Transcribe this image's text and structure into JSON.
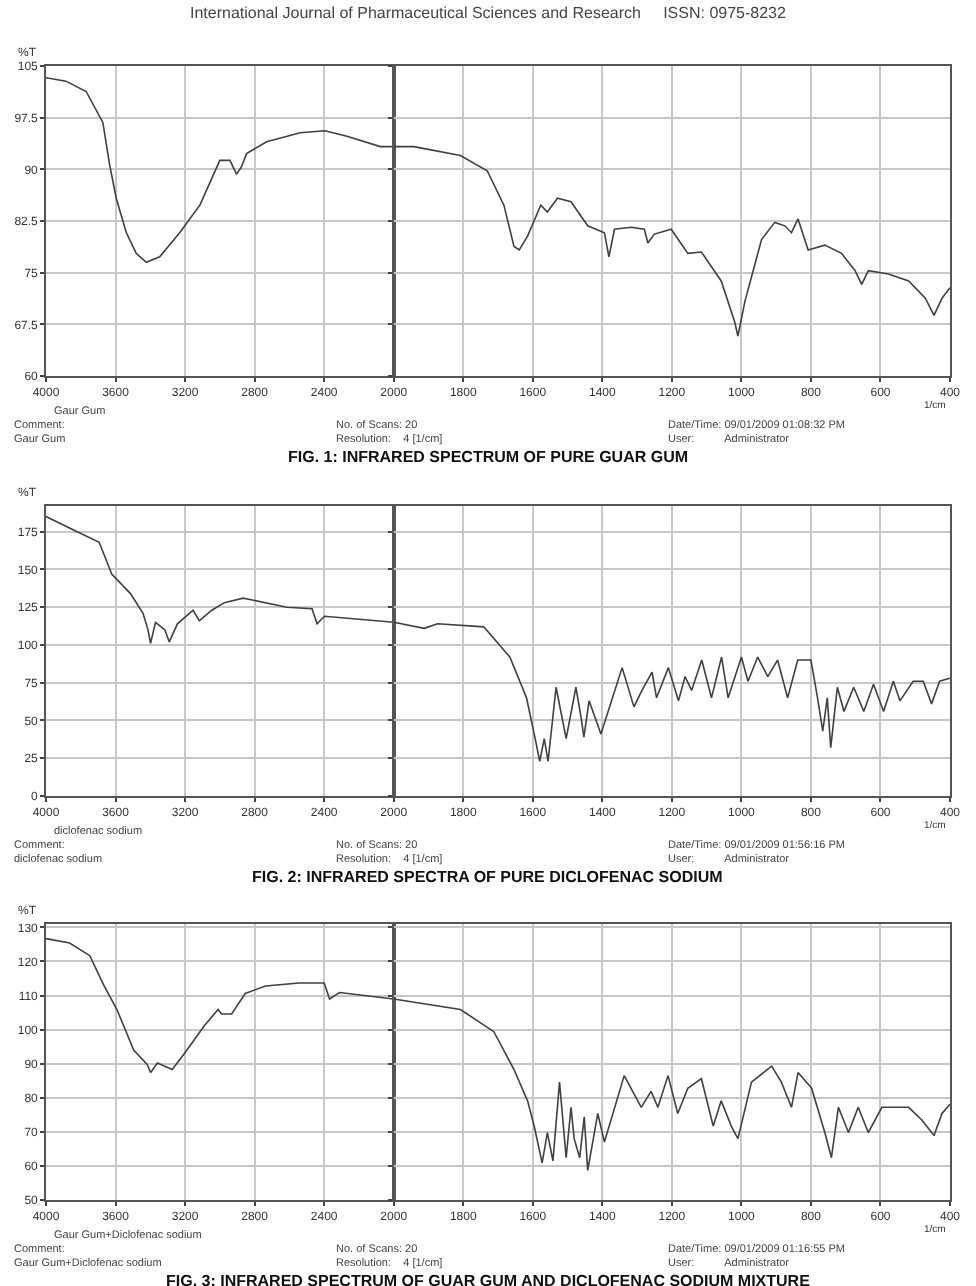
{
  "chart_data": [
    {
      "type": "line",
      "title": "FIG. 1: INFRARED SPECTRUM OF PURE GUAR GUM",
      "subtitle": "International Journal of Pharmaceutical Sciences and Research     ISSN: 0975-8232",
      "ylabel": "%T",
      "annotations": [
        "Gaur Gum",
        "Comment:",
        "Gaur Gum",
        "No. of Scans: 20",
        "Resolution:    4 [1/cm]",
        "Date/Time: 09/01/2009 01:08:32 PM",
        "User:          Administrator"
      ],
      "xlim": [
        4000,
        2000
      ],
      "xticks": [
        4000,
        3600,
        3200,
        2800,
        2400,
        2000
      ],
      "ylim": [
        60,
        105
      ],
      "yticks": [
        60,
        67.5,
        75,
        82.5,
        90,
        97.5,
        105
      ],
      "grid": true,
      "series": [
        {
          "color": "#404040",
          "x": [
            4000,
            3885,
            3769,
            3673,
            3635,
            3596,
            3538,
            3481,
            3423,
            3346,
            3231,
            3115,
            3000,
            2942,
            2904,
            2877,
            2846,
            2731,
            2538,
            2396,
            2269,
            2077,
            2000
          ],
          "values": [
            103.3,
            102.8,
            101.3,
            96.8,
            90.8,
            85.8,
            80.8,
            77.8,
            76.5,
            77.3,
            80.8,
            84.8,
            91.3,
            91.3,
            89.3,
            90.3,
            92.3,
            94,
            95.3,
            95.6,
            94.8,
            93.3,
            93.3
          ]
        }
      ]
    },
    {
      "type": "line",
      "xlabel": "1/cm",
      "tick_labels": "x",
      "xlim": [
        2000,
        400
      ],
      "xticks": [
        1800,
        1600,
        1400,
        1200,
        1000,
        800,
        600,
        400
      ],
      "ylim": [
        60,
        105
      ],
      "yticks": [
        60,
        67.5,
        75,
        82.5,
        90,
        97.5,
        105
      ],
      "grid": true,
      "series": [
        {
          "color": "#404040",
          "x": [
            2000,
            1942,
            1808,
            1731,
            1683,
            1654,
            1639,
            1615,
            1577,
            1558,
            1529,
            1490,
            1442,
            1394,
            1381,
            1365,
            1317,
            1279,
            1269,
            1250,
            1202,
            1154,
            1115,
            1058,
            1019,
            1010,
            990,
            942,
            904,
            875,
            856,
            837,
            808,
            760,
            712,
            673,
            654,
            635,
            577,
            519,
            471,
            446,
            423,
            400
          ],
          "values": [
            93.3,
            93.3,
            92,
            89.8,
            84.8,
            78.8,
            78.3,
            80.3,
            84.8,
            83.8,
            85.8,
            85.3,
            81.8,
            80.8,
            77.3,
            81.3,
            81.6,
            81.3,
            79.3,
            80.6,
            81.3,
            77.8,
            78,
            73.8,
            67.8,
            65.8,
            70.8,
            79.8,
            82.3,
            81.8,
            80.8,
            82.8,
            78.3,
            79,
            77.8,
            75.3,
            73.3,
            75.3,
            74.8,
            73.8,
            71.3,
            68.8,
            71.3,
            72.8
          ]
        }
      ]
    },
    {
      "type": "line",
      "title": "FIG. 2: INFRARED SPECTRA OF PURE DICLOFENAC SODIUM",
      "ylabel": "%T",
      "annotations": [
        "diclofenac sodium",
        "Comment:",
        "diclofenac sodium",
        "No. of Scans: 20",
        "Resolution:    4 [1/cm]",
        "Date/Time: 09/01/2009 01:56:16 PM",
        "User:          Administrator"
      ],
      "xlim": [
        4000,
        2000
      ],
      "xticks": [
        4000,
        3600,
        3200,
        2800,
        2400,
        2000
      ],
      "ylim": [
        0,
        192
      ],
      "yticks": [
        0,
        25,
        50,
        75,
        100,
        125,
        150,
        175
      ],
      "grid": true,
      "series": [
        {
          "color": "#404040",
          "x": [
            4000,
            3838,
            3694,
            3622,
            3514,
            3442,
            3413,
            3399,
            3370,
            3316,
            3291,
            3244,
            3154,
            3118,
            3046,
            2974,
            2866,
            2614,
            2470,
            2441,
            2398,
            2000
          ],
          "values": [
            185,
            176,
            168,
            147,
            134,
            121,
            110,
            101,
            115,
            110,
            102,
            114,
            123,
            116,
            123,
            128,
            131,
            125,
            124,
            114,
            119,
            115
          ]
        }
      ]
    },
    {
      "type": "line",
      "xlabel": "1/cm",
      "tick_labels": "x",
      "xlim": [
        2000,
        400
      ],
      "xticks": [
        1800,
        1600,
        1400,
        1200,
        1000,
        800,
        600,
        400
      ],
      "ylim": [
        0,
        192
      ],
      "yticks": [
        0,
        25,
        50,
        75,
        100,
        125,
        150,
        175
      ],
      "grid": true,
      "series": [
        {
          "color": "#404040",
          "x": [
            2000,
            1912,
            1874,
            1741,
            1666,
            1618,
            1594,
            1580,
            1567,
            1556,
            1533,
            1504,
            1476,
            1461,
            1453,
            1438,
            1404,
            1343,
            1309,
            1286,
            1257,
            1244,
            1210,
            1181,
            1162,
            1143,
            1114,
            1086,
            1057,
            1038,
            1000,
            981,
            953,
            924,
            896,
            867,
            838,
            800,
            781,
            766,
            753,
            743,
            724,
            705,
            677,
            648,
            620,
            591,
            563,
            544,
            506,
            477,
            453,
            430,
            400
          ],
          "values": [
            115,
            111,
            114,
            112,
            92,
            65,
            39,
            23,
            38,
            23,
            72,
            38,
            72,
            52,
            39,
            63,
            41,
            85,
            59,
            70,
            82,
            65,
            85,
            63,
            79,
            70,
            90,
            65,
            92,
            65,
            92,
            76,
            92,
            79,
            90,
            65,
            90,
            90,
            65,
            43,
            65,
            32,
            72,
            56,
            72,
            56,
            74,
            56,
            76,
            63,
            76,
            76,
            61,
            76,
            78
          ]
        }
      ]
    },
    {
      "type": "line",
      "title": "FIG. 3: INFRARED SPECTRUM OF GUAR GUM AND DICLOFENAC SODIUM MIXTURE",
      "ylabel": "%T",
      "annotations": [
        "Gaur Gum+Diclofenac sodium",
        "Comment:",
        "Gaur Gum+Diclofenac sodium",
        "No. of Scans: 20",
        "Resolution:    4 [1/cm]",
        "Date/Time: 09/01/2009 01:16:55 PM",
        "User:          Administrator"
      ],
      "xlim": [
        4000,
        2000
      ],
      "xticks": [
        4000,
        3600,
        3200,
        2800,
        2400,
        2000
      ],
      "ylim": [
        50,
        131
      ],
      "yticks": [
        50,
        60,
        70,
        80,
        90,
        100,
        110,
        120,
        130
      ],
      "grid": true,
      "series": [
        {
          "color": "#404040",
          "x": [
            4000,
            3864,
            3748,
            3670,
            3592,
            3495,
            3418,
            3398,
            3359,
            3274,
            3204,
            3087,
            3010,
            2990,
            2932,
            2854,
            2738,
            2544,
            2400,
            2369,
            2311,
            2000
          ],
          "values": [
            126.7,
            125.4,
            121.7,
            113.3,
            105.9,
            93.9,
            89.8,
            87.4,
            90.2,
            88.3,
            93,
            101.3,
            105.9,
            104.6,
            104.6,
            110.6,
            112.8,
            113.7,
            113.7,
            109,
            110.9,
            109
          ]
        }
      ]
    },
    {
      "type": "line",
      "xlabel": "1/cm",
      "tick_labels": "x",
      "xlim": [
        2000,
        400
      ],
      "xticks": [
        1800,
        1600,
        1400,
        1200,
        1000,
        800,
        600,
        400
      ],
      "ylim": [
        50,
        131
      ],
      "yticks": [
        50,
        60,
        70,
        80,
        90,
        100,
        110,
        120,
        130
      ],
      "grid": true,
      "series": [
        {
          "color": "#404040",
          "x": [
            2000,
            1808,
            1712,
            1654,
            1615,
            1596,
            1573,
            1558,
            1542,
            1523,
            1504,
            1490,
            1481,
            1465,
            1452,
            1442,
            1413,
            1394,
            1337,
            1288,
            1260,
            1240,
            1211,
            1183,
            1154,
            1115,
            1081,
            1058,
            1029,
            1010,
            971,
            913,
            885,
            856,
            837,
            798,
            760,
            741,
            721,
            692,
            664,
            635,
            596,
            519,
            481,
            446,
            423,
            400
          ],
          "values": [
            109,
            105.9,
            99.4,
            88.3,
            79.1,
            71.7,
            60.9,
            69.8,
            61.5,
            84.6,
            62.4,
            77.2,
            68,
            62.4,
            74.4,
            58.7,
            75.4,
            67,
            86.5,
            77.2,
            81.9,
            77.2,
            86.5,
            75.4,
            82.8,
            85.6,
            71.7,
            79.1,
            71.7,
            68,
            84.6,
            89.3,
            84.6,
            77.2,
            87.4,
            82.8,
            69.8,
            62.4,
            77.2,
            69.8,
            77.2,
            69.8,
            77.2,
            77.2,
            73.5,
            68.9,
            75.4,
            78.1
          ]
        }
      ]
    }
  ]
}
